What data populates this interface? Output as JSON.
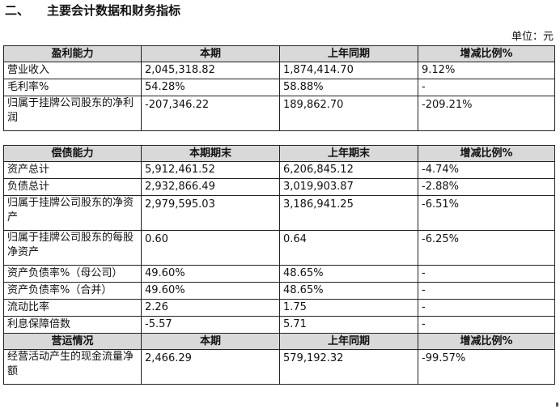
{
  "heading": {
    "num": "二、",
    "title": "主要会计数据和财务指标"
  },
  "unit": "单位：元",
  "profit": {
    "header": [
      "盈利能力",
      "本期",
      "上年同期",
      "增减比例%"
    ],
    "rows": [
      [
        "营业收入",
        "2,045,318.82",
        "1,874,414.70",
        "9.12%"
      ],
      [
        "毛利率%",
        "54.28%",
        "58.88%",
        "-"
      ],
      [
        "归属于挂牌公司股东的净利润",
        "-207,346.22",
        "189,862.70",
        "-209.21%"
      ]
    ]
  },
  "solvency": {
    "header": [
      "偿债能力",
      "本期期末",
      "上年期末",
      "增减比例%"
    ],
    "rows": [
      [
        "资产总计",
        "5,912,461.52",
        "6,206,845.12",
        "-4.74%"
      ],
      [
        "负债总计",
        "2,932,866.49",
        "3,019,903.87",
        "-2.88%"
      ],
      [
        "归属于挂牌公司股东的净资产",
        "2,979,595.03",
        "3,186,941.25",
        "-6.51%"
      ],
      [
        "归属于挂牌公司股东的每股净资产",
        "0.60",
        "0.64",
        "-6.25%"
      ],
      [
        "资产负债率%（母公司）",
        "49.60%",
        "48.65%",
        "-"
      ],
      [
        "资产负债率%（合并）",
        "49.60%",
        "48.65%",
        "-"
      ],
      [
        "流动比率",
        "2.26",
        "1.75",
        "-"
      ],
      [
        "利息保障倍数",
        "-5.57",
        "5.71",
        "-"
      ]
    ]
  },
  "operations": {
    "header": [
      "营运情况",
      "本期",
      "上年同期",
      "增减比例%"
    ],
    "rows": [
      [
        "经营活动产生的现金流量净额",
        "2,466.29",
        "579,192.32",
        "-99.57%"
      ]
    ]
  }
}
